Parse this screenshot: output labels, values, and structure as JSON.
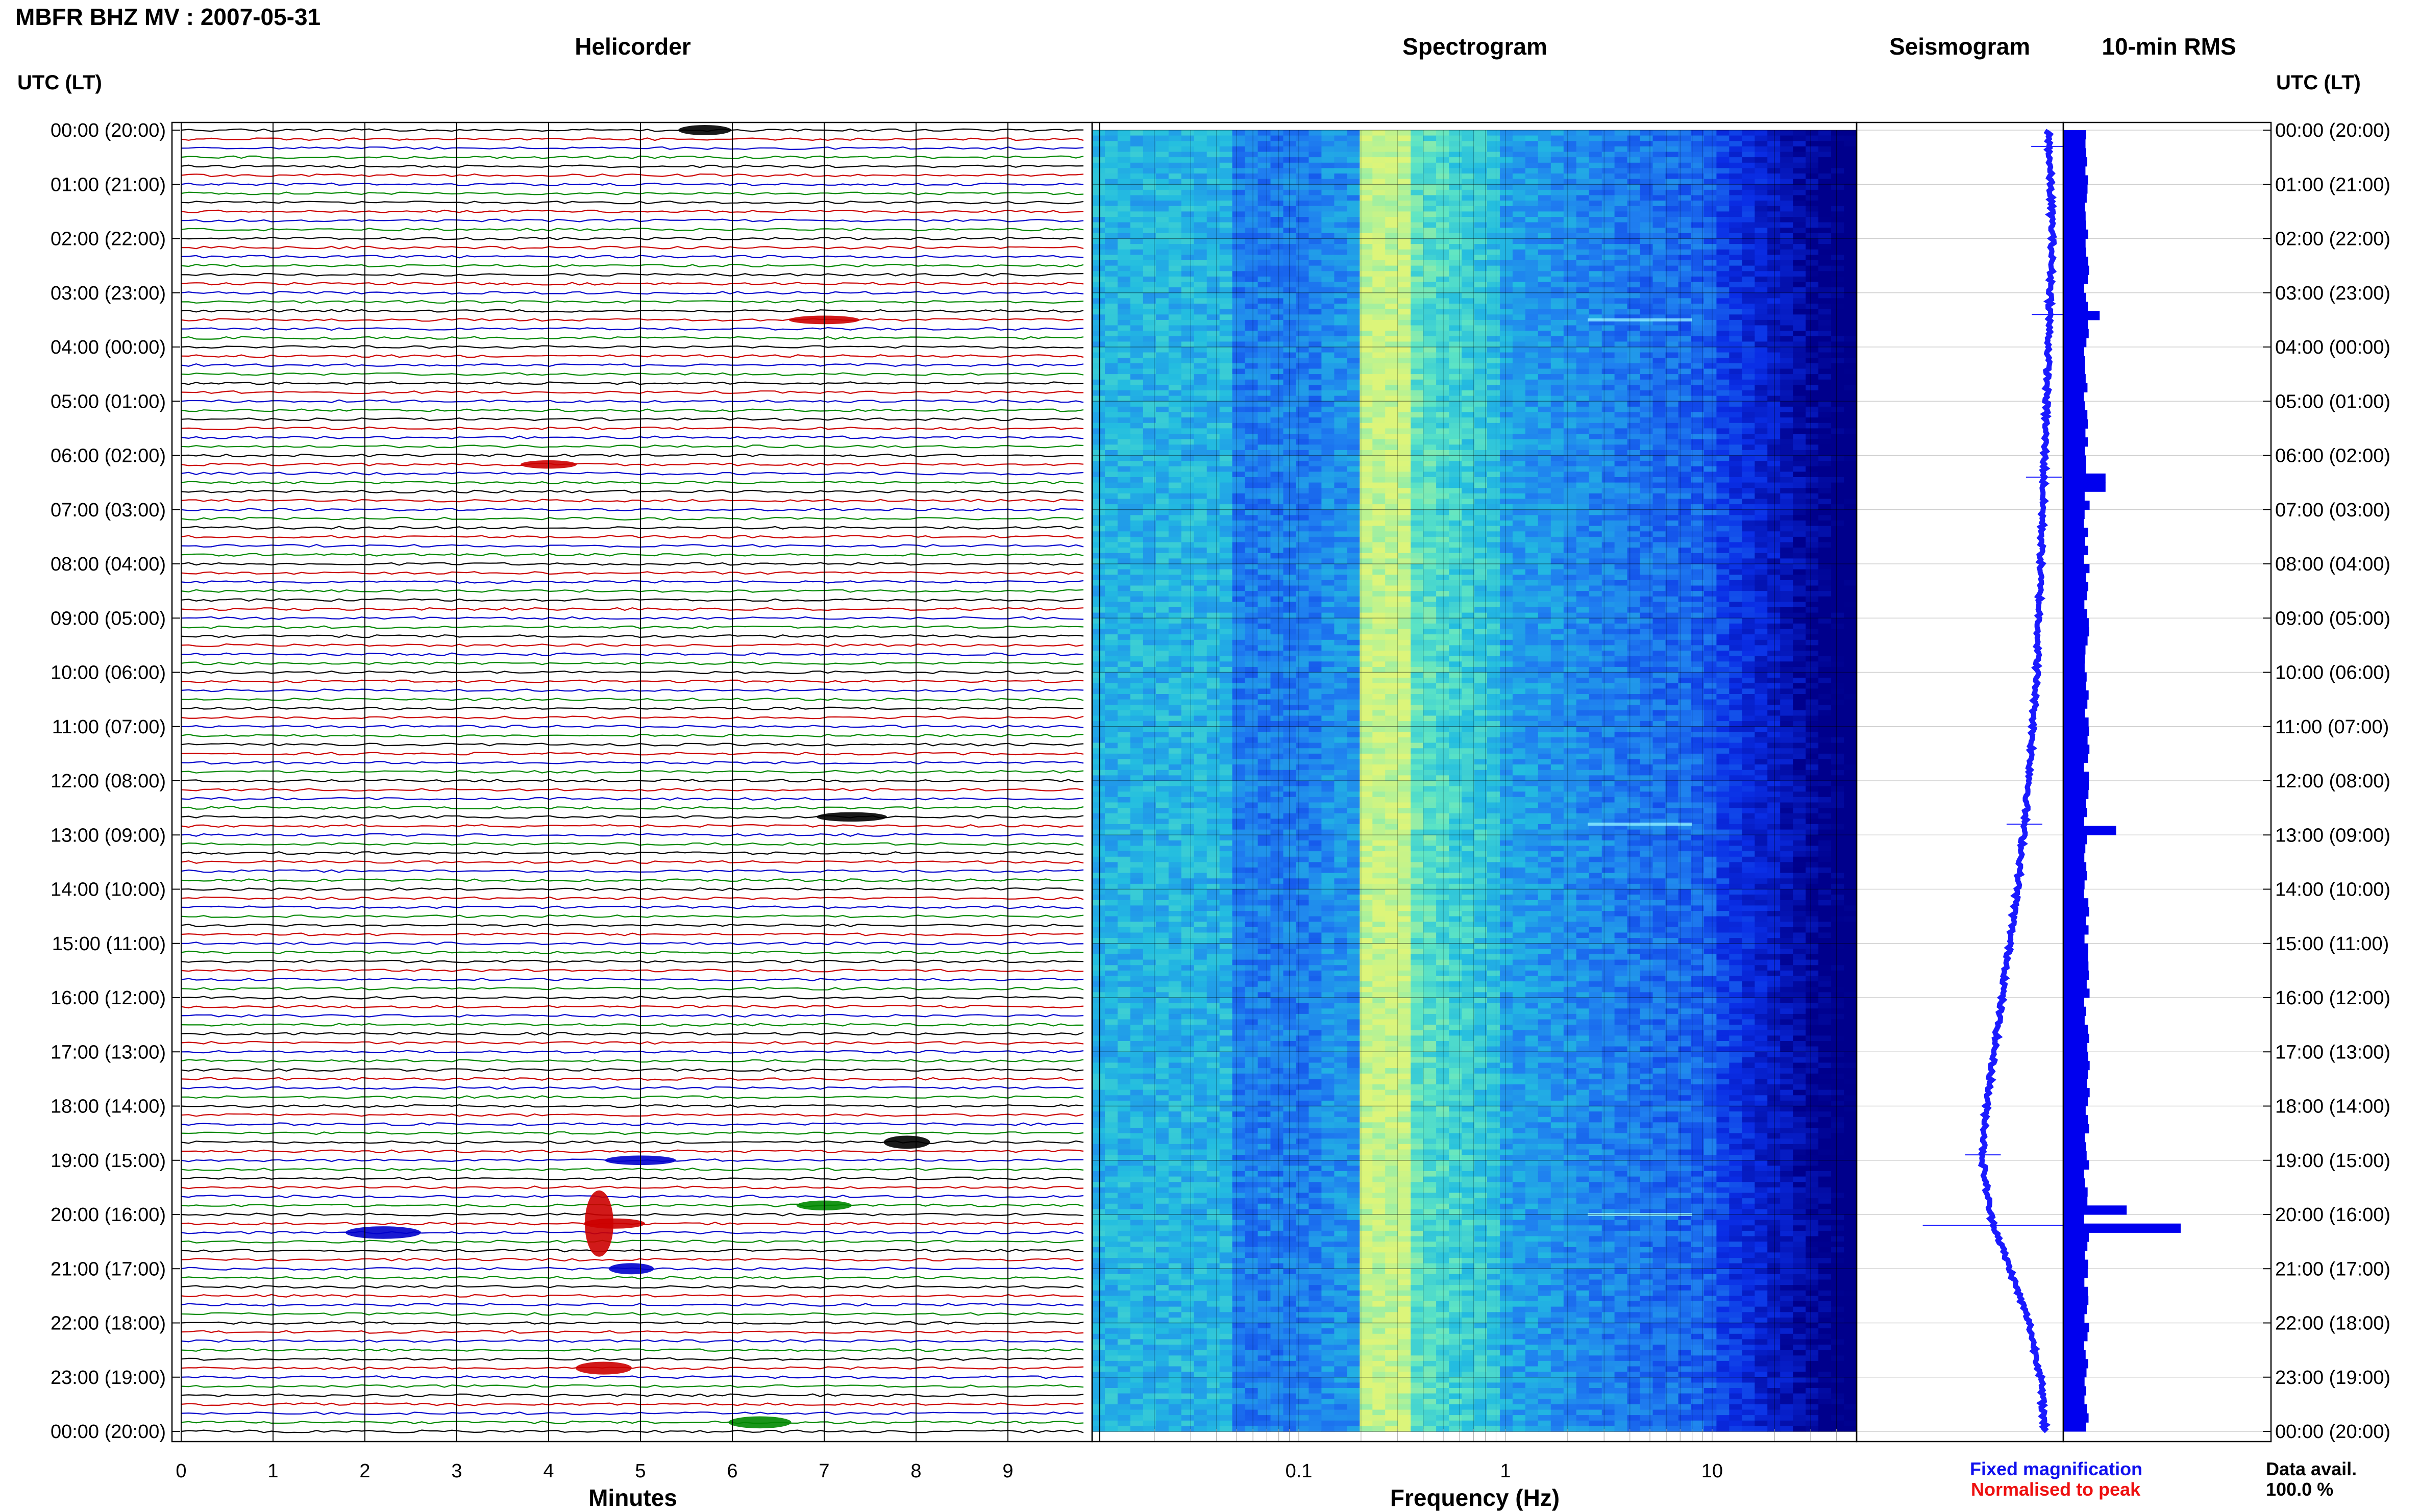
{
  "title": "MBFR BHZ MV : 2007-05-31",
  "panels": {
    "helicorder": "Helicorder",
    "spectrogram": "Spectrogram",
    "seismogram": "Seismogram",
    "rms": "10-min RMS"
  },
  "time_axis_label": "UTC (LT)",
  "time_ticks": [
    "00:00 (20:00)",
    "01:00 (21:00)",
    "02:00 (22:00)",
    "03:00 (23:00)",
    "04:00 (00:00)",
    "05:00 (01:00)",
    "06:00 (02:00)",
    "07:00 (03:00)",
    "08:00 (04:00)",
    "09:00 (05:00)",
    "10:00 (06:00)",
    "11:00 (07:00)",
    "12:00 (08:00)",
    "13:00 (09:00)",
    "14:00 (10:00)",
    "15:00 (11:00)",
    "16:00 (12:00)",
    "17:00 (13:00)",
    "18:00 (14:00)",
    "19:00 (15:00)",
    "20:00 (16:00)",
    "21:00 (17:00)",
    "22:00 (18:00)",
    "23:00 (19:00)",
    "00:00 (20:00)"
  ],
  "minutes_ticks": [
    "0",
    "1",
    "2",
    "3",
    "4",
    "5",
    "6",
    "7",
    "8",
    "9"
  ],
  "minutes_label": "Minutes",
  "frequency_ticks": [
    "0.1",
    "1",
    "10"
  ],
  "frequency_label": "Frequency (Hz)",
  "legend": {
    "fixed": "Fixed magnification",
    "fixed_color": "#1010ee",
    "normalised": "Normalised to peak",
    "normalised_color": "#ee1010"
  },
  "data_avail": {
    "label": "Data avail.",
    "value": "100.0 %"
  },
  "colors": {
    "trace_cycle": [
      "#000000",
      "#cc0000",
      "#0000cc",
      "#008800"
    ],
    "seismogram": "#1a1aff",
    "rms": "#0000ee",
    "spectrogram_low": "#00008c",
    "spectrogram_high": "#dcf57a"
  },
  "chart_data": [
    {
      "type": "heatmap",
      "name": "Helicorder",
      "xlabel": "Minutes",
      "x_range": [
        0,
        10
      ],
      "rows_per_hour": 6,
      "hours": 24,
      "events": [
        {
          "hour": 0.0,
          "minute": 5.7
        },
        {
          "hour": 3.5,
          "minute": 7.0
        },
        {
          "hour": 6.1,
          "minute": 4.0
        },
        {
          "hour": 12.7,
          "minute": 7.3
        },
        {
          "hour": 18.6,
          "minute": 7.9
        },
        {
          "hour": 19.0,
          "minute": 5.0
        },
        {
          "hour": 19.8,
          "minute": 7.0
        },
        {
          "hour": 20.2,
          "minute": 4.55
        },
        {
          "hour": 20.35,
          "minute": 2.2
        },
        {
          "hour": 21.0,
          "minute": 4.9
        },
        {
          "hour": 22.8,
          "minute": 4.6
        },
        {
          "hour": 23.8,
          "minute": 6.3
        }
      ]
    },
    {
      "type": "heatmap",
      "name": "Spectrogram",
      "xlabel": "Frequency (Hz)",
      "x_scale": "log",
      "x_range": [
        0.01,
        50
      ],
      "y_range_hours": [
        0,
        24
      ],
      "peak_band_hz": [
        0.2,
        0.3
      ]
    },
    {
      "type": "line",
      "name": "Seismogram",
      "y_range_hours": [
        0,
        24
      ],
      "baseline": [
        [
          0,
          0.7
        ],
        [
          2,
          0.72
        ],
        [
          4,
          0.7
        ],
        [
          6,
          0.68
        ],
        [
          8,
          0.66
        ],
        [
          10,
          0.64
        ],
        [
          12,
          0.6
        ],
        [
          14,
          0.54
        ],
        [
          16,
          0.46
        ],
        [
          18,
          0.38
        ],
        [
          19,
          0.36
        ],
        [
          20,
          0.4
        ],
        [
          21,
          0.5
        ],
        [
          22,
          0.6
        ],
        [
          23,
          0.66
        ],
        [
          24,
          0.68
        ]
      ],
      "spikes_hours": [
        0.3,
        3.4,
        6.4,
        12.8,
        18.9,
        20.2
      ]
    },
    {
      "type": "bar",
      "name": "10-min RMS",
      "orientation": "horizontal",
      "y_range_hours": [
        0,
        24
      ],
      "peaks": [
        {
          "hour": 3.4,
          "value": 0.31
        },
        {
          "hour": 6.4,
          "value": 0.36
        },
        {
          "hour": 12.8,
          "value": 0.45
        },
        {
          "hour": 19.9,
          "value": 0.54
        },
        {
          "hour": 20.2,
          "value": 1.0
        }
      ],
      "baseline_value": 0.2
    }
  ]
}
